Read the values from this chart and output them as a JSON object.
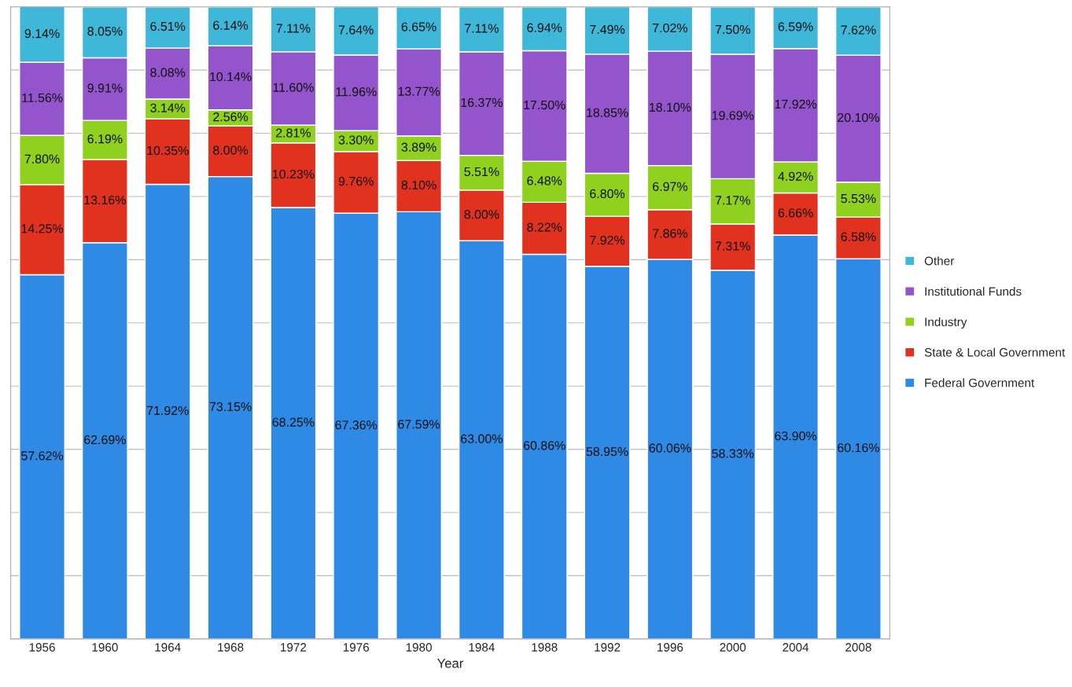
{
  "chart_data": {
    "type": "bar",
    "stacked": true,
    "xlabel": "Year",
    "categories": [
      "1956",
      "1960",
      "1964",
      "1968",
      "1972",
      "1976",
      "1980",
      "1984",
      "1988",
      "1992",
      "1996",
      "2000",
      "2004",
      "2008"
    ],
    "series": [
      {
        "name": "Federal Government",
        "color": "#2f8ae6",
        "values": [
          57.62,
          62.69,
          71.92,
          73.15,
          68.25,
          67.36,
          67.59,
          63.0,
          60.86,
          58.95,
          60.06,
          58.33,
          63.9,
          60.16
        ],
        "value_labels": [
          "57.62%",
          "62.69%",
          "71.92%",
          "73.15%",
          "68.25%",
          "67.36%",
          "67.59%",
          "63.00%",
          "60.86%",
          "58.95%",
          "60.06%",
          "58.33%",
          "63.90%",
          "60.16%"
        ]
      },
      {
        "name": "State & Local Government",
        "color": "#e0321e",
        "values": [
          14.25,
          13.16,
          10.35,
          8.0,
          10.23,
          9.76,
          8.1,
          8.0,
          8.22,
          7.92,
          7.86,
          7.31,
          6.66,
          6.58
        ],
        "value_labels": [
          "14.25%",
          "13.16%",
          "10.35%",
          "8.00%",
          "10.23%",
          "9.76%",
          "8.10%",
          "8.00%",
          "8.22%",
          "7.92%",
          "7.86%",
          "7.31%",
          "6.66%",
          "6.58%"
        ]
      },
      {
        "name": "Industry",
        "color": "#8fd11e",
        "values": [
          7.8,
          6.19,
          3.14,
          2.56,
          2.81,
          3.3,
          3.89,
          5.51,
          6.48,
          6.8,
          6.97,
          7.17,
          4.92,
          5.53
        ],
        "value_labels": [
          "7.80%",
          "6.19%",
          "3.14%",
          "2.56%",
          "2.81%",
          "3.30%",
          "3.89%",
          "5.51%",
          "6.48%",
          "6.80%",
          "6.97%",
          "7.17%",
          "4.92%",
          "5.53%"
        ]
      },
      {
        "name": "Institutional Funds",
        "color": "#9454cc",
        "values": [
          11.56,
          9.91,
          8.08,
          10.14,
          11.6,
          11.96,
          13.77,
          16.37,
          17.5,
          18.85,
          18.1,
          19.69,
          17.92,
          20.1
        ],
        "value_labels": [
          "11.56%",
          "9.91%",
          "8.08%",
          "10.14%",
          "11.60%",
          "11.96%",
          "13.77%",
          "16.37%",
          "17.50%",
          "18.85%",
          "18.10%",
          "19.69%",
          "17.92%",
          "20.10%"
        ]
      },
      {
        "name": "Other",
        "color": "#3fb7d9",
        "values": [
          9.14,
          8.05,
          6.51,
          6.14,
          7.11,
          7.64,
          6.65,
          7.11,
          6.94,
          7.49,
          7.02,
          7.5,
          6.59,
          7.62
        ],
        "value_labels": [
          "9.14%",
          "8.05%",
          "6.51%",
          "6.14%",
          "7.11%",
          "7.64%",
          "6.65%",
          "7.11%",
          "6.94%",
          "7.49%",
          "7.02%",
          "7.50%",
          "6.59%",
          "7.62%"
        ]
      }
    ],
    "ylim": [
      0,
      100
    ],
    "yticks": [
      {
        "value": 0,
        "label": null
      },
      {
        "value": 10,
        "label": null
      },
      {
        "value": 20,
        "label": null
      },
      {
        "value": 30,
        "label": null
      },
      {
        "value": 40,
        "label": null
      },
      {
        "value": 50,
        "label": null
      },
      {
        "value": 60,
        "label": null
      },
      {
        "value": 70,
        "label": null
      },
      {
        "value": 80,
        "label": null
      },
      {
        "value": 90,
        "label": null
      },
      {
        "value": 100,
        "label": null
      }
    ],
    "tick_labels": "x",
    "grid": "y",
    "legend": "right"
  }
}
